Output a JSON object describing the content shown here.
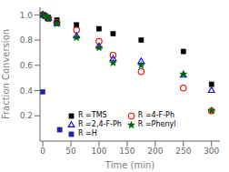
{
  "chart_data": {
    "type": "scatter",
    "xlabel": "Time (min)",
    "ylabel": "Fraction Conversion",
    "xlim": [
      -5,
      315
    ],
    "ylim": [
      0.0,
      1.06
    ],
    "xticks": [
      0,
      50,
      100,
      150,
      200,
      250,
      300
    ],
    "yticks": [
      0.2,
      0.4,
      0.6,
      0.8,
      {
        "value": 1.0,
        "label": "1.0"
      }
    ],
    "grid": false,
    "legend": "lower left",
    "series": [
      {
        "name": "R =TMS",
        "color": "black",
        "marker": "square",
        "x": [
          0,
          5,
          10,
          25,
          60,
          100,
          125,
          175,
          250,
          300
        ],
        "values": [
          1.0,
          0.99,
          0.98,
          0.96,
          0.92,
          0.89,
          0.85,
          0.8,
          0.71,
          0.45
        ]
      },
      {
        "name": "R =4-F-Ph",
        "color": "red",
        "marker": "open-circle",
        "x": [
          0,
          5,
          10,
          25,
          60,
          100,
          125,
          175,
          250,
          300
        ],
        "values": [
          1.0,
          0.99,
          0.97,
          0.94,
          0.88,
          0.79,
          0.68,
          0.55,
          0.42,
          0.24
        ]
      },
      {
        "name": "R =2,4-F-Ph",
        "color": "blue",
        "marker": "open-triangle",
        "x": [
          0,
          5,
          10,
          25,
          60,
          100,
          125,
          175,
          250,
          300
        ],
        "values": [
          1.0,
          0.99,
          0.97,
          0.93,
          0.83,
          0.75,
          0.65,
          0.63,
          0.52,
          0.4
        ]
      },
      {
        "name": "R =Phenyl",
        "color": "darkgreen",
        "marker": "star",
        "x": [
          0,
          5,
          10,
          25,
          60,
          100,
          125,
          175,
          250,
          300
        ],
        "values": [
          1.0,
          0.99,
          0.97,
          0.93,
          0.82,
          0.74,
          0.62,
          0.6,
          0.53,
          0.24
        ]
      },
      {
        "name": "R =H",
        "color": "#2222aa",
        "marker": "square",
        "x": [
          0,
          30
        ],
        "values": [
          0.39,
          0.09
        ]
      }
    ]
  }
}
